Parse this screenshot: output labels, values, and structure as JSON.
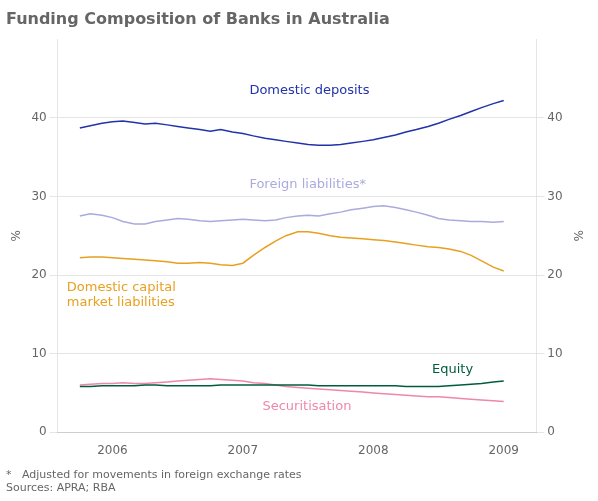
{
  "chart_data": {
    "type": "line",
    "title": "Funding Composition of Banks in Australia",
    "ylabel": "%",
    "y2label": "%",
    "x": [
      2005.75,
      2005.83,
      2005.92,
      2006.0,
      2006.08,
      2006.17,
      2006.25,
      2006.33,
      2006.42,
      2006.5,
      2006.58,
      2006.67,
      2006.75,
      2006.83,
      2006.92,
      2007.0,
      2007.08,
      2007.17,
      2007.25,
      2007.33,
      2007.42,
      2007.5,
      2007.58,
      2007.67,
      2007.75,
      2007.83,
      2007.92,
      2008.0,
      2008.08,
      2008.17,
      2008.25,
      2008.33,
      2008.42,
      2008.5,
      2008.58,
      2008.67,
      2008.75,
      2008.83,
      2008.92,
      2009.0
    ],
    "xlim": [
      2005.58,
      2009.25
    ],
    "xticks": [
      2006,
      2007,
      2008,
      2009
    ],
    "ylim": [
      0,
      50
    ],
    "yticks": [
      0,
      10,
      20,
      30,
      40
    ],
    "y2lim": [
      0,
      50
    ],
    "y2ticks": [
      0,
      10,
      20,
      30,
      40
    ],
    "grid": true,
    "series": [
      {
        "name": "Domestic deposits",
        "color": "#2233AA",
        "values": [
          38.7,
          39.0,
          39.3,
          39.5,
          39.6,
          39.4,
          39.2,
          39.3,
          39.1,
          38.9,
          38.7,
          38.5,
          38.3,
          38.5,
          38.2,
          38.0,
          37.7,
          37.4,
          37.2,
          37.0,
          36.8,
          36.6,
          36.5,
          36.5,
          36.6,
          36.8,
          37.0,
          37.2,
          37.5,
          37.8,
          38.2,
          38.5,
          38.9,
          39.3,
          39.8,
          40.3,
          40.8,
          41.3,
          41.8,
          42.2
        ]
      },
      {
        "name": "Foreign liabilities*",
        "color": "#AAAADD",
        "values": [
          27.5,
          27.8,
          27.6,
          27.3,
          26.8,
          26.5,
          26.5,
          26.8,
          27.0,
          27.2,
          27.1,
          26.9,
          26.8,
          26.9,
          27.0,
          27.1,
          27.0,
          26.9,
          27.0,
          27.3,
          27.5,
          27.6,
          27.5,
          27.8,
          28.0,
          28.3,
          28.5,
          28.7,
          28.8,
          28.6,
          28.3,
          28.0,
          27.6,
          27.2,
          27.0,
          26.9,
          26.8,
          26.8,
          26.7,
          26.8
        ]
      },
      {
        "name": "Domestic capital\nmarket liabilities",
        "color": "#E8A020",
        "values": [
          22.2,
          22.3,
          22.3,
          22.2,
          22.1,
          22.0,
          21.9,
          21.8,
          21.7,
          21.5,
          21.5,
          21.6,
          21.5,
          21.3,
          21.2,
          21.5,
          22.5,
          23.5,
          24.3,
          25.0,
          25.5,
          25.5,
          25.3,
          25.0,
          24.8,
          24.7,
          24.6,
          24.5,
          24.4,
          24.2,
          24.0,
          23.8,
          23.6,
          23.5,
          23.3,
          23.0,
          22.5,
          21.8,
          21.0,
          20.5
        ]
      },
      {
        "name": "Equity",
        "color": "#005C40",
        "values": [
          5.8,
          5.8,
          5.9,
          5.9,
          5.9,
          5.9,
          6.0,
          6.0,
          5.9,
          5.9,
          5.9,
          5.9,
          5.9,
          6.0,
          6.0,
          6.0,
          6.0,
          6.0,
          6.0,
          6.0,
          6.0,
          6.0,
          5.9,
          5.9,
          5.9,
          5.9,
          5.9,
          5.9,
          5.9,
          5.9,
          5.8,
          5.8,
          5.8,
          5.8,
          5.9,
          6.0,
          6.1,
          6.2,
          6.4,
          6.5
        ]
      },
      {
        "name": "Securitisation",
        "color": "#EE88AA",
        "values": [
          6.0,
          6.1,
          6.2,
          6.2,
          6.3,
          6.2,
          6.2,
          6.3,
          6.4,
          6.5,
          6.6,
          6.7,
          6.8,
          6.7,
          6.6,
          6.5,
          6.3,
          6.2,
          6.0,
          5.8,
          5.7,
          5.6,
          5.5,
          5.4,
          5.3,
          5.2,
          5.1,
          5.0,
          4.9,
          4.8,
          4.7,
          4.6,
          4.5,
          4.5,
          4.4,
          4.3,
          4.2,
          4.1,
          4.0,
          3.9
        ]
      }
    ],
    "annotations": [
      {
        "text": "Domestic deposits",
        "x": 2007.05,
        "y": 43.5,
        "color": "#2233AA"
      },
      {
        "text": "Foreign liabilities*",
        "x": 2007.05,
        "y": 31.5,
        "color": "#AAAADD"
      },
      {
        "text": "Domestic capital\nmarket liabilities",
        "x": 2005.65,
        "y": 17.5,
        "color": "#E8A020"
      },
      {
        "text": "Equity",
        "x": 2008.45,
        "y": 8.0,
        "color": "#005C40"
      },
      {
        "text": "Securitisation",
        "x": 2007.15,
        "y": 3.2,
        "color": "#EE88AA"
      }
    ],
    "footnotes": [
      "*   Adjusted for movements in foreign exchange rates",
      "Sources: APRA; RBA"
    ]
  }
}
